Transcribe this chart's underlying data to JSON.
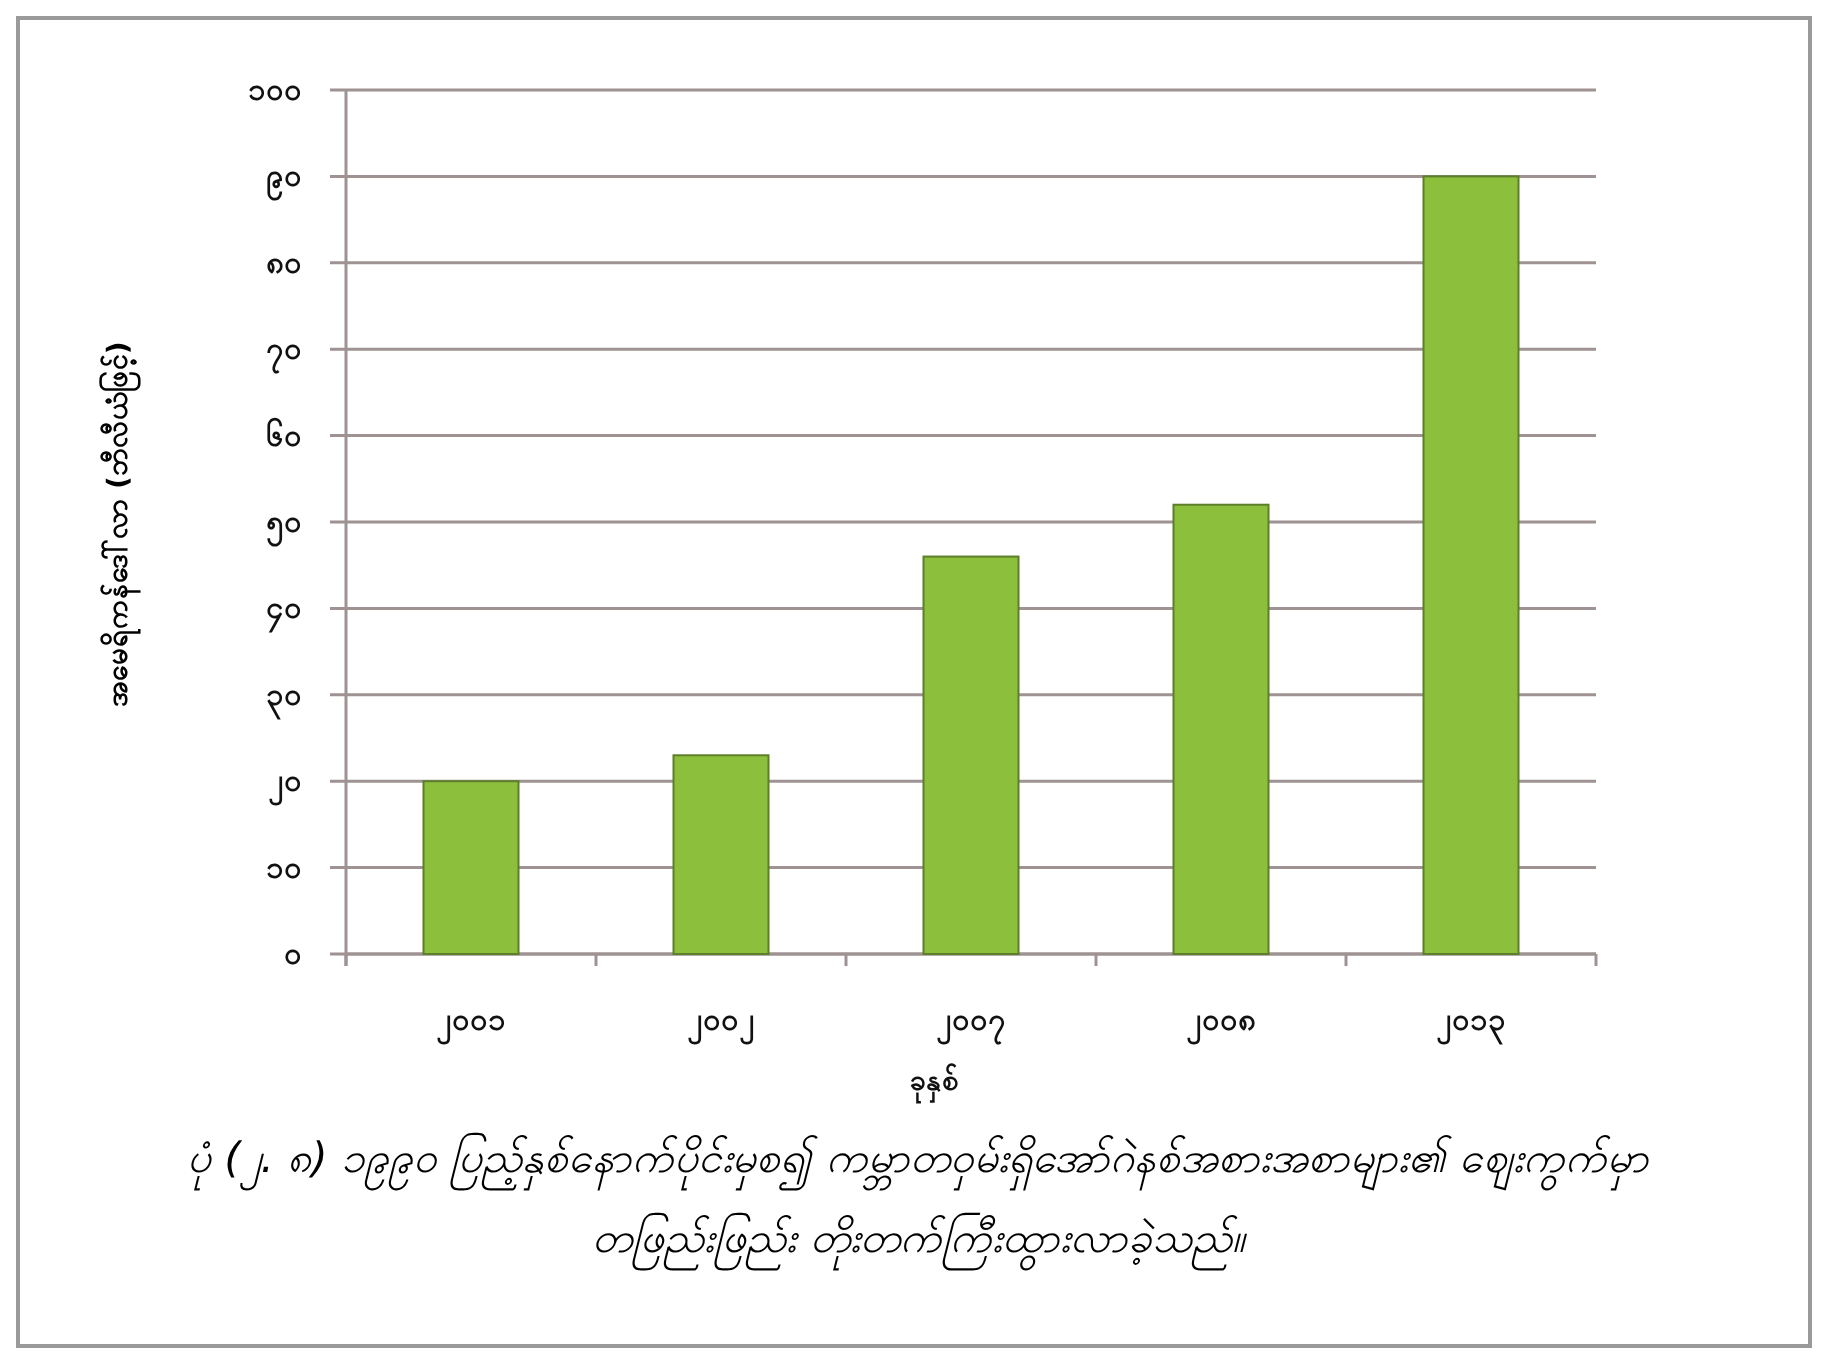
{
  "chart_data": {
    "type": "bar",
    "categories": [
      "၂၀၀၁",
      "၂၀၀၂",
      "၂၀၀၇",
      "၂၀၀၈",
      "၂၀၁၃"
    ],
    "values": [
      20,
      23,
      46,
      52,
      90
    ],
    "color": "#8cbf3c",
    "ylim": [
      0,
      100
    ],
    "yticks": [
      {
        "value": 0,
        "label": "၀"
      },
      {
        "value": 10,
        "label": "၁၀"
      },
      {
        "value": 20,
        "label": "၂၀"
      },
      {
        "value": 30,
        "label": "၃၀"
      },
      {
        "value": 40,
        "label": "၄၀"
      },
      {
        "value": 50,
        "label": "၅၀"
      },
      {
        "value": 60,
        "label": "၆၀"
      },
      {
        "value": 70,
        "label": "၇၀"
      },
      {
        "value": 80,
        "label": "၈၀"
      },
      {
        "value": 90,
        "label": "၉၀"
      },
      {
        "value": 100,
        "label": "၁၀၀"
      }
    ],
    "grid": "y",
    "xlabel": "ခုနှစ်",
    "ylabel": "အမေရိကန်ဒေါ်လာ (ဘီလီယံဖြင့်)",
    "annotations": [
      "ပုံ (၂. ၈) ၁၉၉၀ ပြည့်နှစ်နောက်ပိုင်းမှစ၍ ကမ္ဘာတဝှမ်းရှိအော်ဂဲနစ်အစားအစာများ၏ ဈေးကွက်မှာ တဖြည်းဖြည်း တိုးတက်ကြီးထွားလာခဲ့သည်။"
    ]
  }
}
